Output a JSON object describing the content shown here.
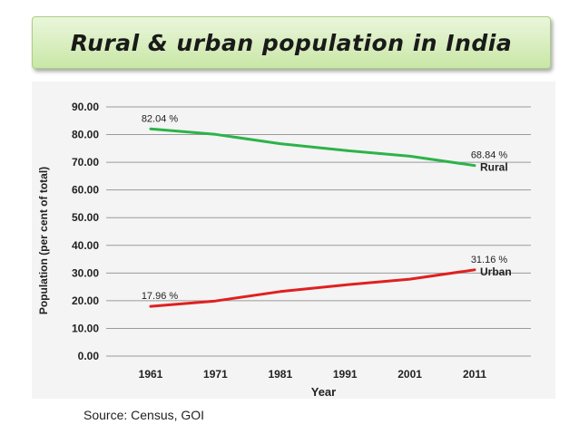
{
  "slide": {
    "title": "Rural & urban population in India",
    "source": "Source: Census, GOI"
  },
  "colors": {
    "rural": "#2db34a",
    "urban": "#e02020",
    "grid": "#9a9a9a",
    "text": "#222222"
  },
  "chart_data": {
    "type": "line",
    "title": "",
    "xlabel": "Year",
    "ylabel": "Population (per cent of total)",
    "categories": [
      "1961",
      "1971",
      "1981",
      "1991",
      "2001",
      "2011"
    ],
    "ylim": [
      0,
      90
    ],
    "yticks": [
      0,
      10,
      20,
      30,
      40,
      50,
      60,
      70,
      80,
      90
    ],
    "ytick_labels": [
      "0.00",
      "10.00",
      "20.00",
      "30.00",
      "40.00",
      "50.00",
      "60.00",
      "70.00",
      "80.00",
      "90.00"
    ],
    "grid": true,
    "series": [
      {
        "name": "Rural",
        "values": [
          82.04,
          80.1,
          76.7,
          74.3,
          72.2,
          68.84
        ],
        "labels": [
          {
            "index": 0,
            "text": "82.04 %"
          },
          {
            "index": 5,
            "text": "68.84 %"
          }
        ]
      },
      {
        "name": "Urban",
        "values": [
          17.96,
          19.9,
          23.3,
          25.7,
          27.8,
          31.16
        ],
        "labels": [
          {
            "index": 0,
            "text": "17.96 %"
          },
          {
            "index": 5,
            "text": "31.16 %"
          }
        ]
      }
    ]
  }
}
